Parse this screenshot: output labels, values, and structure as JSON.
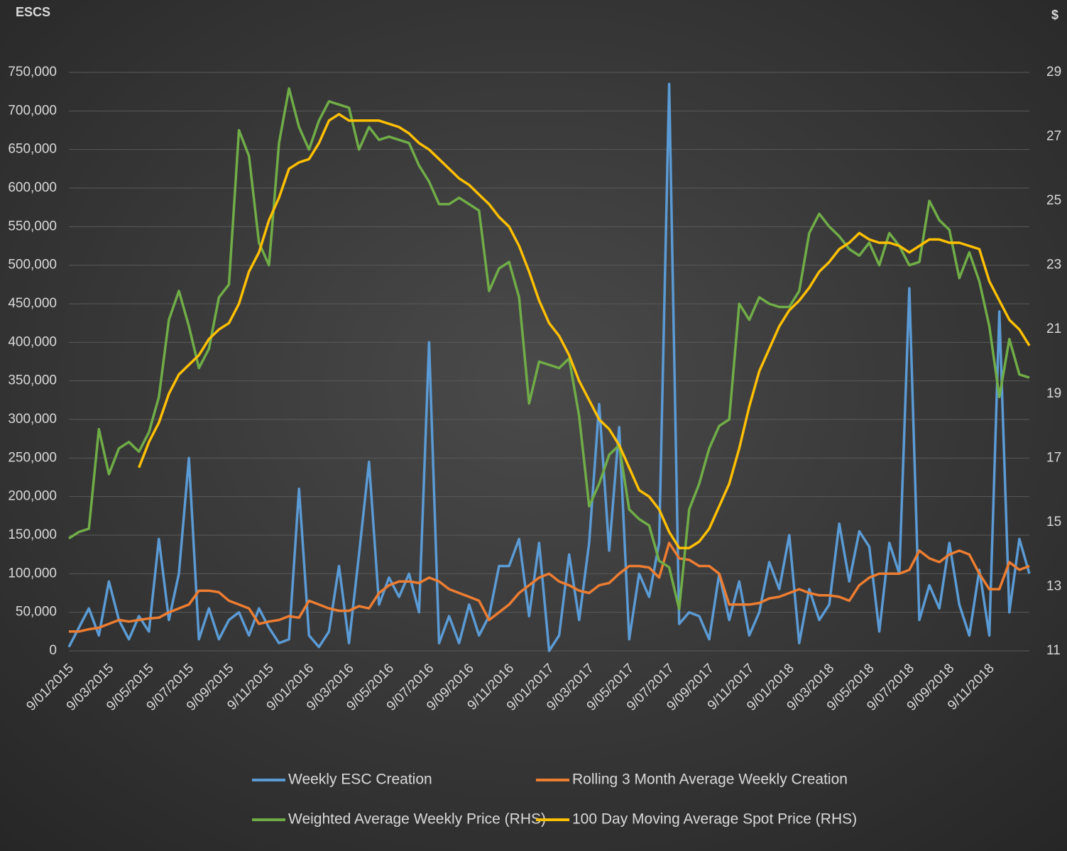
{
  "chart_data": {
    "type": "line",
    "y_title": "ESCS",
    "y2_title": "$",
    "categories": [
      "9/01/2015",
      null,
      null,
      null,
      "9/03/2015",
      null,
      null,
      null,
      "9/05/2015",
      null,
      null,
      null,
      "9/07/2015",
      null,
      null,
      null,
      "9/09/2015",
      null,
      null,
      null,
      "9/11/2015",
      null,
      null,
      null,
      "9/01/2016",
      null,
      null,
      null,
      "9/03/2016",
      null,
      null,
      null,
      "9/05/2016",
      null,
      null,
      null,
      "9/07/2016",
      null,
      null,
      null,
      "9/09/2016",
      null,
      null,
      null,
      "9/11/2016",
      null,
      null,
      null,
      "9/01/2017",
      null,
      null,
      null,
      "9/03/2017",
      null,
      null,
      null,
      "9/05/2017",
      null,
      null,
      null,
      "9/07/2017",
      null,
      null,
      null,
      "9/09/2017",
      null,
      null,
      null,
      "9/11/2017",
      null,
      null,
      null,
      "9/01/2018",
      null,
      null,
      null,
      "9/03/2018",
      null,
      null,
      null,
      "9/05/2018",
      null,
      null,
      null,
      "9/07/2018",
      null,
      null,
      null,
      "9/09/2018",
      null,
      null,
      null,
      "9/11/2018",
      null,
      null,
      null,
      null
    ],
    "ylim": [
      0,
      750000
    ],
    "yticks": [
      0,
      {
        "value": 50000,
        "label": "50,000"
      },
      {
        "value": 100000,
        "label": "100,000"
      },
      {
        "value": 150000,
        "label": "150,000"
      },
      {
        "value": 200000,
        "label": "200,000"
      },
      {
        "value": 250000,
        "label": "250,000"
      },
      {
        "value": 300000,
        "label": "300,000"
      },
      {
        "value": 350000,
        "label": "350,000"
      },
      {
        "value": 400000,
        "label": "400,000"
      },
      {
        "value": 450000,
        "label": "450,000"
      },
      {
        "value": 500000,
        "label": "500,000"
      },
      {
        "value": 550000,
        "label": "550,000"
      },
      {
        "value": 600000,
        "label": "600,000"
      },
      {
        "value": 650000,
        "label": "650,000"
      },
      {
        "value": 700000,
        "label": "700,000"
      },
      {
        "value": 750000,
        "label": "750,000"
      }
    ],
    "y2lim": [
      11,
      29
    ],
    "y2ticks": [
      11,
      13,
      15,
      17,
      19,
      21,
      23,
      25,
      27,
      29
    ],
    "grid": true,
    "legend": "bottom",
    "series": [
      {
        "name": "Weekly ESC Creation",
        "color": "#5b9bd5",
        "values": [
          5000,
          30000,
          55000,
          20000,
          90000,
          40000,
          15000,
          45000,
          25000,
          145000,
          40000,
          100000,
          250000,
          15000,
          55000,
          15000,
          40000,
          50000,
          20000,
          55000,
          30000,
          10000,
          15000,
          210000,
          20000,
          5000,
          25000,
          110000,
          10000,
          125000,
          245000,
          60000,
          95000,
          70000,
          100000,
          50000,
          400000,
          10000,
          45000,
          10000,
          60000,
          20000,
          45000,
          110000,
          110000,
          145000,
          45000,
          140000,
          0,
          20000,
          125000,
          40000,
          140000,
          320000,
          130000,
          290000,
          15000,
          100000,
          70000,
          140000,
          735000,
          35000,
          50000,
          45000,
          15000,
          100000,
          40000,
          90000,
          20000,
          50000,
          115000,
          80000,
          150000,
          10000,
          80000,
          40000,
          60000,
          165000,
          90000,
          155000,
          135000,
          25000,
          140000,
          100000,
          470000,
          40000,
          85000,
          55000,
          140000,
          60000,
          20000,
          105000,
          20000,
          440000,
          50000,
          145000,
          100000
        ]
      },
      {
        "name": "Rolling 3 Month Average Weekly Creation",
        "color": "#ed7d31",
        "values": [
          25000,
          25000,
          28000,
          30000,
          35000,
          40000,
          38000,
          40000,
          42000,
          43000,
          50000,
          55000,
          60000,
          78000,
          78000,
          76000,
          65000,
          60000,
          55000,
          35000,
          38000,
          40000,
          45000,
          43000,
          65000,
          60000,
          55000,
          52000,
          52000,
          58000,
          55000,
          75000,
          85000,
          90000,
          90000,
          88000,
          95000,
          90000,
          80000,
          75000,
          70000,
          65000,
          40000,
          50000,
          60000,
          75000,
          85000,
          95000,
          100000,
          90000,
          85000,
          78000,
          75000,
          85000,
          88000,
          100000,
          110000,
          110000,
          108000,
          95000,
          140000,
          120000,
          118000,
          110000,
          110000,
          100000,
          60000,
          60000,
          60000,
          62000,
          68000,
          70000,
          75000,
          80000,
          75000,
          72000,
          72000,
          70000,
          65000,
          85000,
          95000,
          100000,
          100000,
          100000,
          105000,
          130000,
          120000,
          115000,
          125000,
          130000,
          125000,
          100000,
          80000,
          80000,
          115000,
          105000,
          110000
        ]
      },
      {
        "name": "Weighted Average Weekly Price (RHS)",
        "color": "#70ad47",
        "axis": "y2",
        "values": [
          14.5,
          14.7,
          14.8,
          17.9,
          16.5,
          17.3,
          17.5,
          17.2,
          17.8,
          18.9,
          21.3,
          22.2,
          21.1,
          19.8,
          20.4,
          22.0,
          22.4,
          27.2,
          26.4,
          23.7,
          23.0,
          26.8,
          28.5,
          27.3,
          26.6,
          27.5,
          28.1,
          28.0,
          27.9,
          26.6,
          27.3,
          26.9,
          27.0,
          26.9,
          26.8,
          26.1,
          25.6,
          24.9,
          24.9,
          25.1,
          24.9,
          24.7,
          22.2,
          22.9,
          23.1,
          22.0,
          18.7,
          20.0,
          19.9,
          19.8,
          20.1,
          18.3,
          15.5,
          16.2,
          17.1,
          17.4,
          15.4,
          15.1,
          14.9,
          13.8,
          13.6,
          12.3,
          15.4,
          16.2,
          17.3,
          18.0,
          18.2,
          21.8,
          21.3,
          22.0,
          21.8,
          21.7,
          21.7,
          22.2,
          24.0,
          24.6,
          24.2,
          23.9,
          23.5,
          23.3,
          23.7,
          23.0,
          24.0,
          23.6,
          23.0,
          23.1,
          25.0,
          24.4,
          24.1,
          22.6,
          23.4,
          22.5,
          21.1,
          18.9,
          20.7,
          19.6,
          19.5
        ]
      },
      {
        "name": "100 Day Moving Average Spot Price (RHS)",
        "color": "#ffc000",
        "axis": "y2",
        "values": [
          null,
          null,
          null,
          null,
          null,
          null,
          null,
          16.7,
          17.5,
          18.1,
          19.0,
          19.6,
          19.9,
          20.2,
          20.7,
          21.0,
          21.2,
          21.8,
          22.8,
          23.4,
          24.4,
          25.1,
          26.0,
          26.2,
          26.3,
          26.8,
          27.5,
          27.7,
          27.5,
          27.5,
          27.5,
          27.5,
          27.4,
          27.3,
          27.1,
          26.8,
          26.6,
          26.3,
          26.0,
          25.7,
          25.5,
          25.2,
          24.9,
          24.5,
          24.2,
          23.6,
          22.8,
          21.9,
          21.2,
          20.8,
          20.2,
          19.4,
          18.8,
          18.2,
          17.9,
          17.4,
          16.7,
          16.0,
          15.8,
          15.4,
          14.7,
          14.2,
          14.2,
          14.4,
          14.8,
          15.5,
          16.2,
          17.3,
          18.6,
          19.7,
          20.4,
          21.1,
          21.6,
          21.9,
          22.3,
          22.8,
          23.1,
          23.5,
          23.7,
          24.0,
          23.8,
          23.7,
          23.7,
          23.6,
          23.4,
          23.6,
          23.8,
          23.8,
          23.7,
          23.7,
          23.6,
          23.5,
          22.5,
          21.9,
          21.3,
          21.0,
          20.5
        ]
      }
    ]
  }
}
